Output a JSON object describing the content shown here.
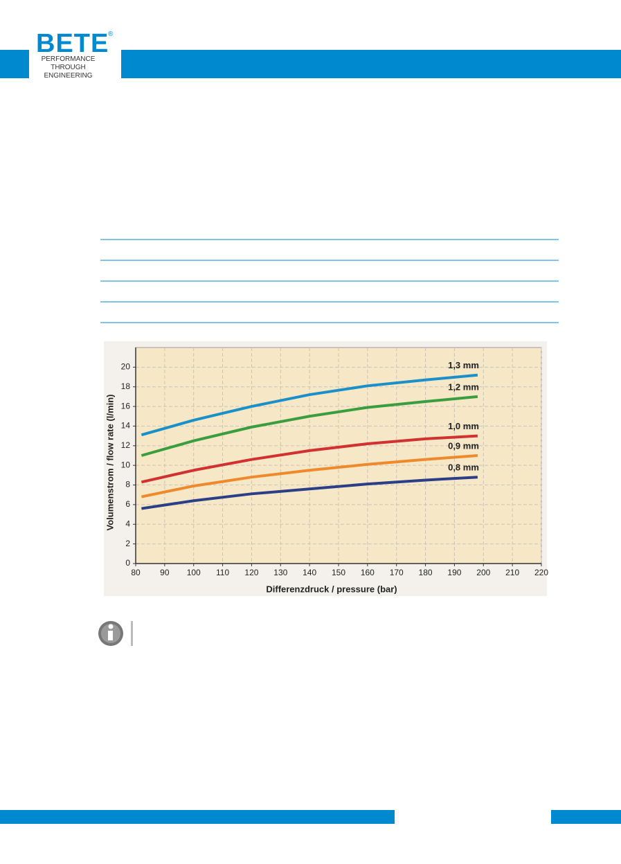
{
  "header": {
    "logo": "BETE",
    "registered": "®",
    "tagline": [
      "PERFORMANCE",
      "THROUGH",
      "ENGINEERING"
    ]
  },
  "chart_data": {
    "type": "line",
    "x_label": "Differenzdruck / pressure (bar)",
    "y_label": "Volumenstrom / flow rate (l/min)",
    "x": [
      82,
      100,
      120,
      140,
      160,
      180,
      198
    ],
    "series": [
      {
        "name": "1,3 mm",
        "color": "#1a8fc8",
        "values": [
          13.1,
          14.6,
          16.0,
          17.2,
          18.1,
          18.7,
          19.2
        ]
      },
      {
        "name": "1,2 mm",
        "color": "#3a9e3e",
        "values": [
          11.0,
          12.5,
          13.9,
          15.0,
          15.9,
          16.5,
          17.0
        ]
      },
      {
        "name": "1,0 mm",
        "color": "#d1312f",
        "values": [
          8.3,
          9.5,
          10.6,
          11.5,
          12.2,
          12.7,
          13.0
        ]
      },
      {
        "name": "0,9 mm",
        "color": "#ef8a2c",
        "values": [
          6.8,
          7.9,
          8.8,
          9.5,
          10.1,
          10.6,
          11.0
        ]
      },
      {
        "name": "0,8 mm",
        "color": "#2a3f86",
        "values": [
          5.6,
          6.4,
          7.1,
          7.6,
          8.1,
          8.5,
          8.8
        ]
      }
    ],
    "xlim": [
      80,
      220
    ],
    "xticks": [
      80,
      90,
      100,
      110,
      120,
      130,
      140,
      150,
      160,
      170,
      180,
      190,
      200,
      210,
      220
    ],
    "ylim": [
      0,
      22
    ],
    "yticks": [
      0,
      2,
      4,
      6,
      8,
      10,
      12,
      14,
      16,
      18,
      20
    ],
    "grid": true
  }
}
